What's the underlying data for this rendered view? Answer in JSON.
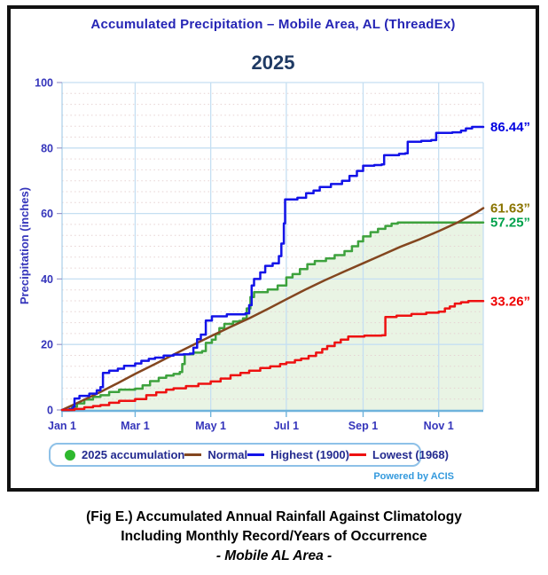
{
  "header": {
    "title": "Accumulated Precipitation – Mobile Area, AL (ThreadEx)"
  },
  "footer": {
    "powered_by": "Powered by ACIS"
  },
  "caption": {
    "line1": "(Fig E.) Accumulated Annual Rainfall Against  Climatology",
    "line2": "Including Monthly Record/Years of Occurrence",
    "line3": "- Mobile AL Area -"
  },
  "colors": {
    "frame": "#111111",
    "title_text": "#2525b5",
    "chart_title_text": "#1f3a64",
    "axis_text": "#3535bb",
    "grid_major": "#c5dff2",
    "grid_minor": "#e6d2d2",
    "axis_line": "#6fb3dc",
    "axis_side": "#a9cfe9",
    "legend_border": "#8ec1e8",
    "legend_text": "#232a8f",
    "powered_text": "#3399dd"
  },
  "chart_data": {
    "type": "line",
    "title": "2025",
    "ylabel": "Precipitation (inches)",
    "ylim": [
      0,
      100
    ],
    "y_ticks": [
      0,
      20,
      40,
      60,
      80,
      100
    ],
    "x_domain_days": [
      0,
      340
    ],
    "x_ticks": [
      {
        "day": 0,
        "label": "Jan 1"
      },
      {
        "day": 59,
        "label": "Mar 1"
      },
      {
        "day": 120,
        "label": "May 1"
      },
      {
        "day": 181,
        "label": "Jul 1"
      },
      {
        "day": 243,
        "label": "Sep 1"
      },
      {
        "day": 304,
        "label": "Nov 1"
      }
    ],
    "grid": {
      "major": "solid",
      "minor": "dotted",
      "minors_per_major": 5
    },
    "legend_position": "bottom",
    "series": [
      {
        "name": "2025 accumulation",
        "color": "#3da23d",
        "marker": "circle",
        "marker_color": "#2eb82e",
        "style": "step",
        "fill": "#e9f4e4",
        "end_value": 57.25,
        "end_label": "57.25”",
        "end_label_color": "#00a14b",
        "points": [
          [
            0,
            0
          ],
          [
            8,
            1
          ],
          [
            12,
            2
          ],
          [
            18,
            3.2
          ],
          [
            25,
            4
          ],
          [
            31,
            4.5
          ],
          [
            38,
            5.5
          ],
          [
            46,
            6.2
          ],
          [
            59,
            6.5
          ],
          [
            65,
            7.5
          ],
          [
            71,
            8.8
          ],
          [
            78,
            9.8
          ],
          [
            84,
            10.5
          ],
          [
            90,
            11
          ],
          [
            95,
            11.6
          ],
          [
            97,
            14
          ],
          [
            99,
            17
          ],
          [
            106,
            17.5
          ],
          [
            113,
            18
          ],
          [
            116,
            20.5
          ],
          [
            121,
            21.5
          ],
          [
            124,
            23.2
          ],
          [
            127,
            25
          ],
          [
            131,
            26.3
          ],
          [
            138,
            27
          ],
          [
            143,
            27.2
          ],
          [
            146,
            28
          ],
          [
            149,
            31
          ],
          [
            152,
            34.5
          ],
          [
            155,
            36
          ],
          [
            166,
            36.8
          ],
          [
            174,
            38
          ],
          [
            181,
            40.5
          ],
          [
            186,
            41.5
          ],
          [
            192,
            43
          ],
          [
            198,
            44.5
          ],
          [
            204,
            45.5
          ],
          [
            213,
            46.3
          ],
          [
            220,
            47.3
          ],
          [
            228,
            48.5
          ],
          [
            234,
            50
          ],
          [
            239,
            51.5
          ],
          [
            243,
            53
          ],
          [
            249,
            54.3
          ],
          [
            255,
            55.3
          ],
          [
            261,
            56.2
          ],
          [
            266,
            56.9
          ],
          [
            271,
            57.25
          ],
          [
            340,
            57.25
          ]
        ]
      },
      {
        "name": "Normal",
        "color": "#83461f",
        "marker": "line",
        "marker_color": "#83461f",
        "style": "linear",
        "fill": null,
        "end_value": 61.63,
        "end_label": "61.63”",
        "end_label_color": "#8a7400",
        "points": [
          [
            0,
            0
          ],
          [
            15,
            2.6
          ],
          [
            31,
            5.5
          ],
          [
            45,
            8.2
          ],
          [
            59,
            11
          ],
          [
            75,
            14
          ],
          [
            90,
            16.9
          ],
          [
            105,
            19.7
          ],
          [
            120,
            22.5
          ],
          [
            135,
            25.2
          ],
          [
            151,
            28
          ],
          [
            166,
            30.8
          ],
          [
            181,
            33.8
          ],
          [
            196,
            36.7
          ],
          [
            212,
            39.6
          ],
          [
            228,
            42.3
          ],
          [
            243,
            44.8
          ],
          [
            258,
            47.3
          ],
          [
            273,
            49.8
          ],
          [
            289,
            52.2
          ],
          [
            304,
            54.6
          ],
          [
            319,
            57.2
          ],
          [
            334,
            60.2
          ],
          [
            340,
            61.63
          ]
        ]
      },
      {
        "name": "Highest (1900)",
        "color": "#1313e8",
        "marker": "line",
        "marker_color": "#1313e8",
        "style": "step",
        "fill": null,
        "end_value": 86.44,
        "end_label": "86.44”",
        "end_label_color": "#0000e0",
        "points": [
          [
            0,
            0
          ],
          [
            6,
            0.3
          ],
          [
            9,
            1
          ],
          [
            10,
            3.5
          ],
          [
            14,
            4.3
          ],
          [
            22,
            5
          ],
          [
            28,
            6
          ],
          [
            31,
            7
          ],
          [
            33,
            11.3
          ],
          [
            38,
            12
          ],
          [
            45,
            12.6
          ],
          [
            50,
            13.5
          ],
          [
            59,
            14.2
          ],
          [
            64,
            15
          ],
          [
            70,
            15.6
          ],
          [
            75,
            16
          ],
          [
            82,
            16.6
          ],
          [
            90,
            16.9
          ],
          [
            98,
            17
          ],
          [
            103,
            17.2
          ],
          [
            106,
            19
          ],
          [
            109,
            21.6
          ],
          [
            112,
            23
          ],
          [
            116,
            27.3
          ],
          [
            121,
            28.6
          ],
          [
            133,
            29.2
          ],
          [
            148,
            29.5
          ],
          [
            151,
            32
          ],
          [
            153,
            38
          ],
          [
            155,
            40
          ],
          [
            160,
            42
          ],
          [
            164,
            44
          ],
          [
            170,
            44.8
          ],
          [
            175,
            47
          ],
          [
            177,
            50.8
          ],
          [
            179,
            57
          ],
          [
            180,
            64.3
          ],
          [
            190,
            64.8
          ],
          [
            197,
            66.2
          ],
          [
            203,
            67
          ],
          [
            208,
            68.1
          ],
          [
            217,
            69
          ],
          [
            226,
            70
          ],
          [
            232,
            71.5
          ],
          [
            238,
            73
          ],
          [
            243,
            74.6
          ],
          [
            252,
            74.8
          ],
          [
            258,
            75
          ],
          [
            260,
            77.8
          ],
          [
            272,
            78.2
          ],
          [
            277,
            78.4
          ],
          [
            279,
            81.9
          ],
          [
            290,
            82.2
          ],
          [
            298,
            82.4
          ],
          [
            302,
            84.6
          ],
          [
            315,
            84.8
          ],
          [
            322,
            85.3
          ],
          [
            326,
            86
          ],
          [
            331,
            86.44
          ],
          [
            340,
            86.44
          ]
        ]
      },
      {
        "name": "Lowest (1968)",
        "color": "#ee1111",
        "marker": "line",
        "marker_color": "#ee1111",
        "style": "step",
        "fill": null,
        "end_value": 33.26,
        "end_label": "33.26”",
        "end_label_color": "#ee0000",
        "points": [
          [
            0,
            0
          ],
          [
            10,
            0.3
          ],
          [
            18,
            0.8
          ],
          [
            25,
            1.2
          ],
          [
            31,
            1.5
          ],
          [
            38,
            2.2
          ],
          [
            46,
            2.8
          ],
          [
            59,
            3.3
          ],
          [
            68,
            4.5
          ],
          [
            76,
            5.4
          ],
          [
            84,
            6.2
          ],
          [
            90,
            6.6
          ],
          [
            100,
            7.3
          ],
          [
            110,
            8
          ],
          [
            120,
            8.7
          ],
          [
            128,
            9.6
          ],
          [
            136,
            10.6
          ],
          [
            144,
            11.3
          ],
          [
            151,
            12
          ],
          [
            160,
            12.8
          ],
          [
            168,
            13.3
          ],
          [
            176,
            14
          ],
          [
            181,
            14.5
          ],
          [
            188,
            15.2
          ],
          [
            193,
            15.7
          ],
          [
            199,
            16.5
          ],
          [
            205,
            17.5
          ],
          [
            210,
            18.6
          ],
          [
            214,
            19.5
          ],
          [
            220,
            20.6
          ],
          [
            225,
            21.5
          ],
          [
            231,
            22.4
          ],
          [
            244,
            22.7
          ],
          [
            258,
            22.8
          ],
          [
            261,
            28.4
          ],
          [
            270,
            28.8
          ],
          [
            282,
            29.3
          ],
          [
            294,
            29.7
          ],
          [
            304,
            30
          ],
          [
            309,
            31
          ],
          [
            313,
            31.6
          ],
          [
            317,
            32.5
          ],
          [
            322,
            32.9
          ],
          [
            328,
            33.26
          ],
          [
            340,
            33.26
          ]
        ]
      }
    ]
  }
}
